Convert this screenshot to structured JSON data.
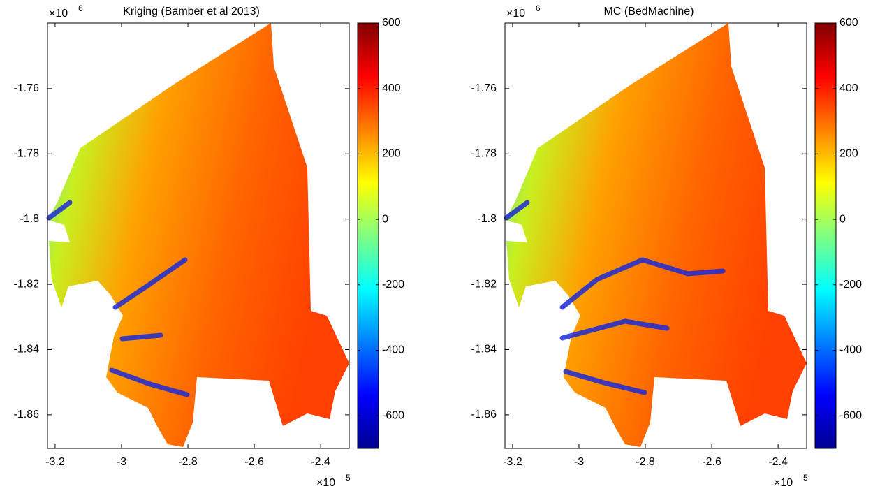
{
  "chart_data": [
    {
      "type": "heatmap",
      "title": "Kriging (Bamber et al 2013)",
      "xlim": [
        -3.223,
        -2.314
      ],
      "ylim": [
        -1.8703,
        -1.7399
      ],
      "xticks": [
        -3.2,
        -3,
        -2.8,
        -2.6,
        -2.4
      ],
      "yticks": [
        -1.76,
        -1.78,
        -1.8,
        -1.82,
        -1.84,
        -1.86
      ],
      "x_multiplier": {
        "base": "×10",
        "exponent": "5"
      },
      "y_multiplier": {
        "base": "×10",
        "exponent": "6"
      },
      "colorbar": {
        "clim": [
          -700,
          600
        ],
        "ticks": [
          -600,
          -400,
          -200,
          0,
          200,
          400,
          600
        ],
        "colormap": "jet"
      }
    },
    {
      "type": "heatmap",
      "title": "MC (BedMachine)",
      "xlim": [
        -3.223,
        -2.314
      ],
      "ylim": [
        -1.8703,
        -1.7399
      ],
      "xticks": [
        -3.2,
        -3,
        -2.8,
        -2.6,
        -2.4
      ],
      "yticks": [
        -1.76,
        -1.78,
        -1.8,
        -1.82,
        -1.84,
        -1.86
      ],
      "x_multiplier": {
        "base": "×10",
        "exponent": "5"
      },
      "y_multiplier": {
        "base": "×10",
        "exponent": "6"
      },
      "colorbar": {
        "clim": [
          -700,
          600
        ],
        "ticks": [
          -600,
          -400,
          -200,
          0,
          200,
          400,
          600
        ],
        "colormap": "jet"
      }
    }
  ]
}
